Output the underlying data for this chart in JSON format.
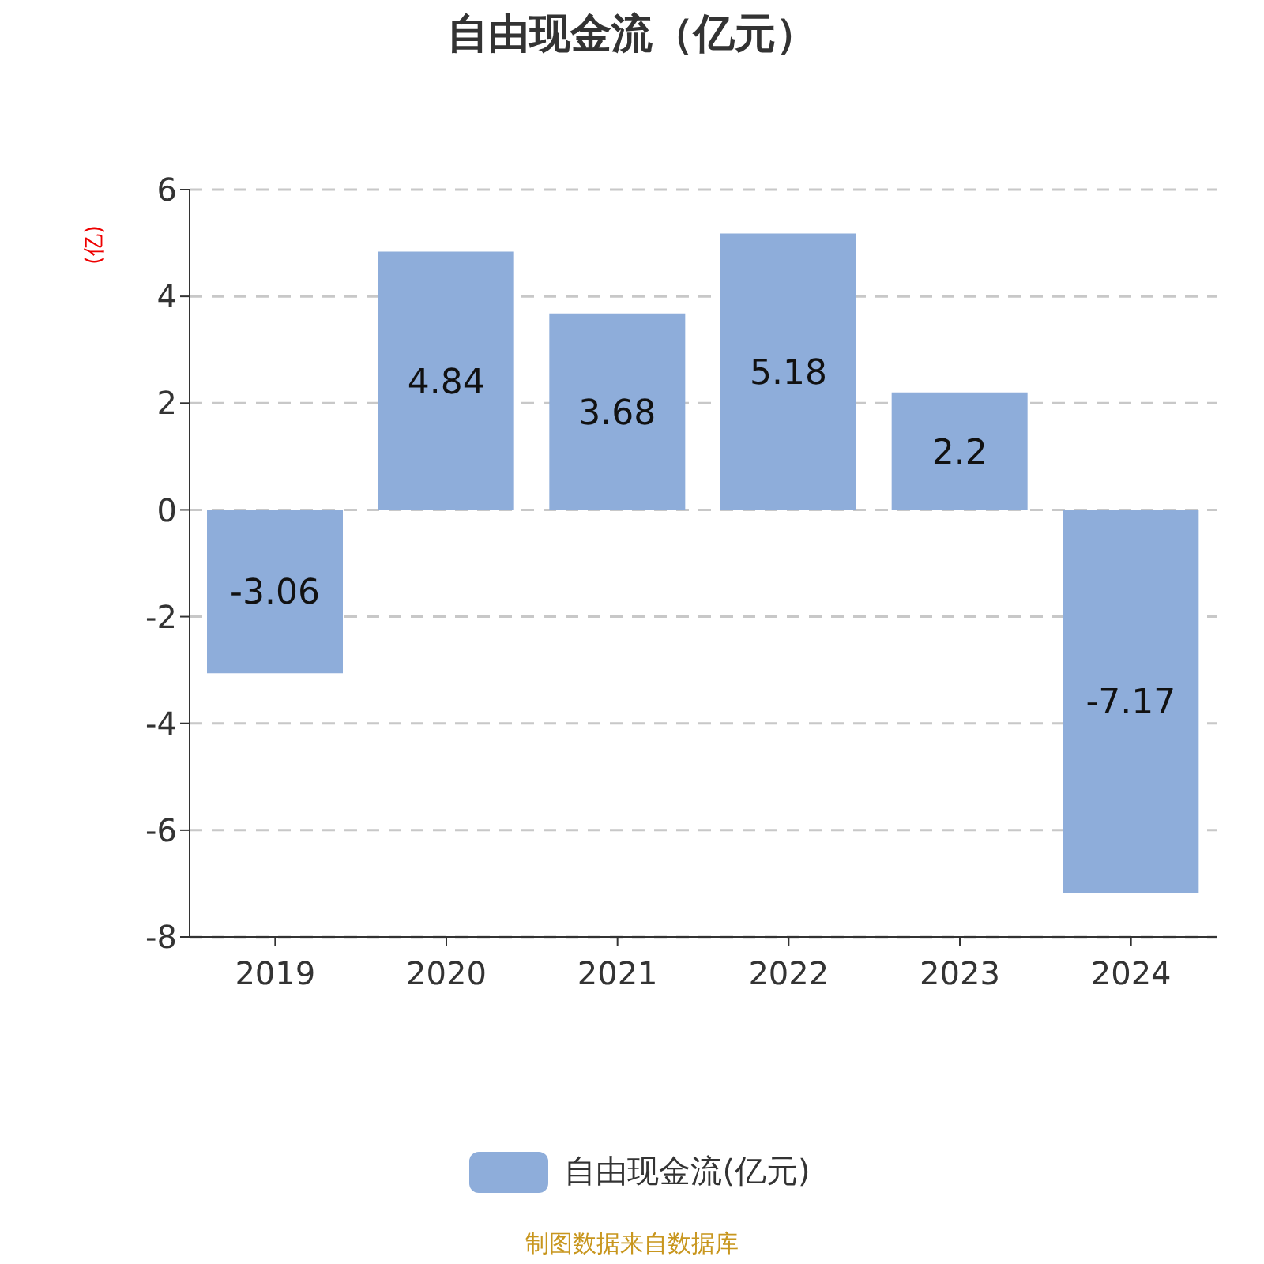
{
  "chart_data": {
    "type": "bar",
    "title": "自由现金流（亿元）",
    "ylabel": "(亿)",
    "categories": [
      "2019",
      "2020",
      "2021",
      "2022",
      "2023",
      "2024"
    ],
    "series": [
      {
        "name": "自由现金流(亿元)",
        "color": "#8eadda",
        "values": [
          -3.06,
          4.84,
          3.68,
          5.18,
          2.2,
          -7.17
        ]
      }
    ],
    "ylim": [
      -8,
      6
    ],
    "yticks": [
      -8,
      -6,
      -4,
      -2,
      0,
      2,
      4,
      6
    ],
    "grid": "y",
    "legend": "bottom",
    "data_labels": true,
    "annotations": [
      "制图数据来自数据库"
    ]
  }
}
